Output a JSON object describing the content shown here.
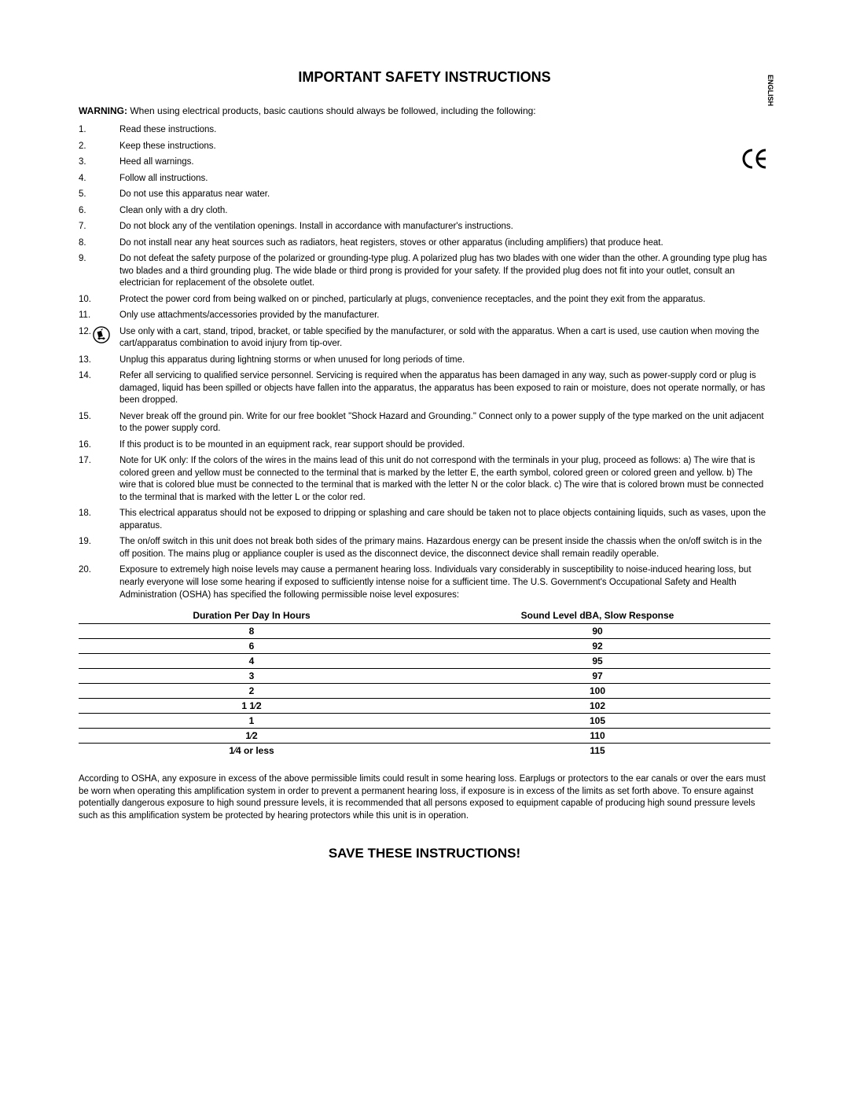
{
  "language_label": "ENGLISH",
  "ce_mark_text": "CE",
  "title": "IMPORTANT SAFETY INSTRUCTIONS",
  "warning_label": "WARNING:",
  "warning_text": " When using electrical products, basic cautions should always be followed, including the following:",
  "instructions": [
    {
      "n": "1.",
      "t": "Read these instructions."
    },
    {
      "n": "2.",
      "t": "Keep these instructions."
    },
    {
      "n": "3.",
      "t": "Heed all warnings."
    },
    {
      "n": "4.",
      "t": "Follow all instructions."
    },
    {
      "n": "5.",
      "t": "Do not use this apparatus near water."
    },
    {
      "n": "6.",
      "t": "Clean only with a dry cloth."
    },
    {
      "n": "7.",
      "t": "Do not block any of the ventilation openings. Install in accordance with manufacturer's instructions."
    },
    {
      "n": "8.",
      "t": "Do not install near any heat sources such as radiators, heat registers, stoves or other apparatus (including amplifiers) that produce heat."
    },
    {
      "n": "9.",
      "t": "Do not defeat the safety purpose of the polarized or grounding-type plug. A polarized plug has two blades with one wider than the other. A grounding type plug has two blades and a third grounding plug. The wide blade or third prong is provided for your safety. If the provided plug does not fit into your outlet, consult an electrician for replacement of the obsolete outlet."
    },
    {
      "n": "10.",
      "t": "Protect the power cord from being walked on or pinched, particularly at plugs, convenience receptacles, and the point they exit from the apparatus."
    },
    {
      "n": "11.",
      "t": "Only use attachments/accessories provided by the manufacturer."
    },
    {
      "n": "12.",
      "t": "Use only with a cart, stand, tripod, bracket, or table specified by the manufacturer, or sold with the apparatus. When a cart is used, use caution when moving the cart/apparatus combination to avoid injury from tip-over.",
      "icon": true
    },
    {
      "n": "13.",
      "t": "Unplug this apparatus during lightning storms or when unused for long periods of time."
    },
    {
      "n": "14.",
      "t": "Refer all servicing to qualified service personnel. Servicing is required when the apparatus has been damaged in any way, such as power-supply cord or plug is damaged, liquid has been spilled or objects have fallen into the apparatus, the apparatus has been exposed to rain or moisture, does not operate normally, or has been dropped."
    },
    {
      "n": "15.",
      "t": "Never break off the ground pin. Write for our free booklet \"Shock Hazard and Grounding.\" Connect only to a power supply of the type marked on the unit adjacent to the power supply cord."
    },
    {
      "n": "16.",
      "t": "If this product is to be mounted in an equipment rack, rear support should be provided."
    },
    {
      "n": "17.",
      "t": "Note for UK only: If the colors of the wires in the mains lead of this unit do not correspond with the terminals in your plug, proceed as follows: a) The wire that is colored green and yellow must be connected to the terminal that is marked by the letter E, the earth symbol, colored green or colored green and yellow. b) The wire that is colored blue must be connected to the terminal that is marked with the letter N or the color black. c) The wire that is colored brown must be connected to the terminal that is marked with the letter L or the color red."
    },
    {
      "n": "18.",
      "t": "This electrical apparatus should not be exposed to dripping or splashing and care should be taken not to place objects containing liquids, such as vases, upon the apparatus."
    },
    {
      "n": "19.",
      "t": "The on/off switch in this unit does not break both sides of the primary mains. Hazardous energy can be present inside the chassis when the on/off switch is in the off position. The mains plug or appliance coupler is used as the disconnect device, the disconnect device shall remain readily operable."
    },
    {
      "n": "20.",
      "t": "Exposure to extremely high noise levels may cause a permanent hearing loss. Individuals vary considerably in susceptibility to noise-induced hearing loss, but nearly everyone will lose some hearing if exposed to sufficiently intense noise for a sufficient time. The U.S. Government's Occupational Safety and Health Administration (OSHA) has specified the following permissible noise level exposures:"
    }
  ],
  "table": {
    "headers": [
      "Duration Per Day In Hours",
      "Sound Level dBA, Slow Response"
    ],
    "rows": [
      [
        "8",
        "90"
      ],
      [
        "6",
        "92"
      ],
      [
        "4",
        "95"
      ],
      [
        "3",
        "97"
      ],
      [
        "2",
        "100"
      ],
      [
        "1 1⁄2",
        "102"
      ],
      [
        "1",
        "105"
      ],
      [
        "1⁄2",
        "110"
      ],
      [
        "1⁄4 or less",
        "115"
      ]
    ]
  },
  "osha_paragraph": "According to OSHA, any exposure in excess of the above permissible limits could result in some hearing loss. Earplugs or protectors to the ear canals or over the ears must be worn when operating this amplification system in order to prevent a permanent hearing loss, if exposure is in excess of the limits as set forth above. To ensure against potentially dangerous exposure to high sound pressure levels, it is recommended that all persons exposed to equipment capable of producing high sound pressure levels such as this amplification system be protected by hearing protectors while this unit is in operation.",
  "save_line": "SAVE THESE INSTRUCTIONS!"
}
